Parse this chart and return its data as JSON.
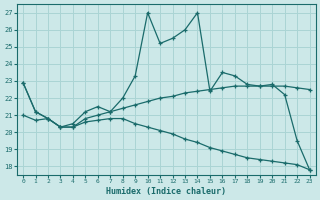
{
  "xlabel": "Humidex (Indice chaleur)",
  "xlim": [
    -0.5,
    23.5
  ],
  "ylim": [
    17.5,
    27.5
  ],
  "yticks": [
    18,
    19,
    20,
    21,
    22,
    23,
    24,
    25,
    26,
    27
  ],
  "xticks": [
    0,
    1,
    2,
    3,
    4,
    5,
    6,
    7,
    8,
    9,
    10,
    11,
    12,
    13,
    14,
    15,
    16,
    17,
    18,
    19,
    20,
    21,
    22,
    23
  ],
  "bg_color": "#cce8e8",
  "grid_color": "#aad4d4",
  "line_color": "#1a6b6b",
  "line1_y": [
    22.9,
    21.2,
    20.8,
    20.3,
    20.5,
    21.2,
    21.5,
    21.2,
    22.0,
    23.3,
    27.0,
    25.2,
    25.5,
    26.0,
    27.0,
    22.4,
    23.5,
    23.3,
    22.8,
    22.7,
    22.8,
    22.2,
    19.5,
    17.8
  ],
  "line2_y": [
    22.9,
    21.2,
    20.8,
    20.3,
    20.3,
    20.8,
    21.0,
    21.2,
    21.4,
    21.6,
    21.8,
    22.0,
    22.1,
    22.3,
    22.4,
    22.5,
    22.6,
    22.7,
    22.7,
    22.7,
    22.7,
    22.7,
    22.6,
    22.5
  ],
  "line3_y": [
    21.0,
    20.7,
    20.8,
    20.3,
    20.3,
    20.6,
    20.7,
    20.8,
    20.8,
    20.5,
    20.3,
    20.1,
    19.9,
    19.6,
    19.4,
    19.1,
    18.9,
    18.7,
    18.5,
    18.4,
    18.3,
    18.2,
    18.1,
    17.8
  ]
}
